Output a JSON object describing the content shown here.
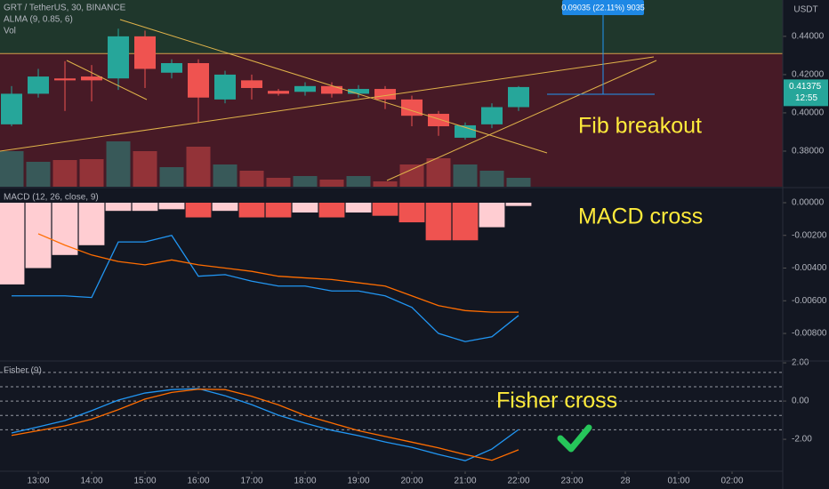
{
  "chart_data": [
    {
      "type": "candlestick",
      "title": "GRT / TetherUS, 30, BINANCE",
      "subtitles": [
        "ALMA (9, 0.85, 6)",
        "Vol"
      ],
      "x": [
        12.5,
        13,
        13.5,
        14,
        14.5,
        15,
        15.5,
        16,
        16.5,
        17,
        17.5,
        18,
        18.5,
        19,
        19.5,
        20,
        20.5,
        21,
        21.5,
        22
      ],
      "open": [
        0.394,
        0.41,
        0.418,
        0.419,
        0.418,
        0.44,
        0.421,
        0.426,
        0.407,
        0.417,
        0.4115,
        0.411,
        0.414,
        0.41,
        0.4125,
        0.407,
        0.3995,
        0.387,
        0.394,
        0.403
      ],
      "high": [
        0.414,
        0.423,
        0.427,
        0.425,
        0.444,
        0.443,
        0.428,
        0.428,
        0.422,
        0.42,
        0.4125,
        0.416,
        0.416,
        0.4145,
        0.414,
        0.409,
        0.401,
        0.395,
        0.405,
        0.414
      ],
      "low": [
        0.393,
        0.408,
        0.401,
        0.406,
        0.412,
        0.413,
        0.418,
        0.395,
        0.405,
        0.407,
        0.409,
        0.409,
        0.408,
        0.408,
        0.402,
        0.393,
        0.388,
        0.386,
        0.392,
        0.401
      ],
      "close": [
        0.41,
        0.419,
        0.417,
        0.417,
        0.44,
        0.423,
        0.426,
        0.408,
        0.42,
        0.413,
        0.41,
        0.414,
        0.41,
        0.4125,
        0.407,
        0.3985,
        0.393,
        0.3935,
        0.403,
        0.4135
      ],
      "volume": [
        40,
        28,
        30,
        31,
        51,
        40,
        22,
        45,
        25,
        18,
        10,
        12,
        8,
        12,
        6,
        25,
        32,
        25,
        18,
        10
      ],
      "volume_lim": [
        0,
        210
      ],
      "up_color": "#26a69a",
      "down_color": "#ef5350",
      "xlim": [
        12.283,
        26.95
      ],
      "ylim": [
        0.3614,
        0.459
      ],
      "yticks": [
        {
          "value": 0.38,
          "label": "0.38000"
        },
        {
          "value": 0.4,
          "label": "0.40000"
        },
        {
          "value": 0.42,
          "label": "0.42000"
        },
        {
          "value": 0.44,
          "label": "0.44000"
        }
      ],
      "fib_level": 0.431,
      "currency": "USDT",
      "last_price": {
        "value": 0.41375,
        "label": "0.41375"
      },
      "countdown": "12:55",
      "measure_label": "0.09035 (22.11%) 9035",
      "annotation": "Fib breakout"
    },
    {
      "type": "macd",
      "title": "MACD (12, 26, close, 9)",
      "xlim": [
        12.283,
        26.95
      ],
      "ylim": [
        -0.00963,
        0.00087
      ],
      "yticks": [
        {
          "value": 0,
          "label": "0.00000"
        },
        {
          "value": -0.002,
          "label": "-0.00200"
        },
        {
          "value": -0.004,
          "label": "-0.00400"
        },
        {
          "value": -0.006,
          "label": "-0.00600"
        },
        {
          "value": -0.008,
          "label": "-0.00800"
        }
      ],
      "x": [
        12.5,
        13,
        13.5,
        14,
        14.5,
        15,
        15.5,
        16,
        16.5,
        17,
        17.5,
        18,
        18.5,
        19,
        19.5,
        20,
        20.5,
        21,
        21.5,
        22
      ],
      "histogram": {
        "values": [
          -0.005,
          -0.004,
          -0.0032,
          -0.0026,
          -0.0005,
          -0.0005,
          -0.0004,
          -0.0009,
          -0.0005,
          -0.0009,
          -0.0009,
          -0.0006,
          -0.0009,
          -0.0006,
          -0.0008,
          -0.0012,
          -0.0023,
          -0.0023,
          -0.0015,
          -0.0002
        ],
        "colors": [
          "#ffcdd2",
          "#ffcdd2",
          "#ffcdd2",
          "#ffcdd2",
          "#ffcdd2",
          "#ffcdd2",
          "#ffcdd2",
          "#ef5350",
          "#ffcdd2",
          "#ef5350",
          "#ef5350",
          "#ffcdd2",
          "#ef5350",
          "#ffcdd2",
          "#ef5350",
          "#ef5350",
          "#ef5350",
          "#ef5350",
          "#ffcdd2",
          "#ffcdd2"
        ]
      },
      "series": [
        {
          "color": "#2196f3",
          "values": [
            -0.0057,
            -0.0057,
            -0.0057,
            -0.0058,
            -0.0024,
            -0.0024,
            -0.002,
            -0.0045,
            -0.0044,
            -0.0048,
            -0.0051,
            -0.0051,
            -0.0054,
            -0.0054,
            -0.0057,
            -0.0064,
            -0.008,
            -0.0085,
            -0.0082,
            -0.0069
          ]
        },
        {
          "color": "#ff6d00",
          "values": [
            null,
            -0.0019,
            -0.0026,
            -0.0032,
            -0.0036,
            -0.0038,
            -0.0035,
            -0.0038,
            -0.004,
            -0.0042,
            -0.0045,
            -0.0046,
            -0.0047,
            -0.0049,
            -0.0051,
            -0.0057,
            -0.0063,
            -0.0066,
            -0.0067,
            -0.0067
          ]
        }
      ],
      "annotation": "MACD cross"
    },
    {
      "type": "fisher",
      "title": "Fisher (9)",
      "xlim": [
        12.283,
        26.95
      ],
      "ylim": [
        -3.67,
        2.05
      ],
      "yticks": [
        {
          "value": 2,
          "label": "2.00"
        },
        {
          "value": 0,
          "label": "0.00"
        },
        {
          "value": -2,
          "label": "-2.00"
        }
      ],
      "levels": [
        1.5,
        0.75,
        0,
        -0.75,
        -1.5
      ],
      "x": [
        12.5,
        13,
        13.5,
        14,
        14.5,
        15,
        15.5,
        16,
        16.5,
        17,
        17.5,
        18,
        18.5,
        19,
        19.5,
        20,
        20.5,
        21,
        21.5,
        22
      ],
      "series": [
        {
          "color": "#2196f3",
          "values": [
            -1.67,
            -1.35,
            -1.02,
            -0.5,
            0.05,
            0.42,
            0.6,
            0.65,
            0.28,
            -0.19,
            -0.74,
            -1.16,
            -1.53,
            -1.81,
            -2.14,
            -2.42,
            -2.79,
            -3.12,
            -2.51,
            -1.49
          ]
        },
        {
          "color": "#ff6d00",
          "values": [
            -1.8,
            -1.55,
            -1.3,
            -0.95,
            -0.45,
            0.1,
            0.45,
            0.62,
            0.6,
            0.25,
            -0.2,
            -0.75,
            -1.15,
            -1.55,
            -1.85,
            -2.15,
            -2.45,
            -2.8,
            -3.1,
            -2.55
          ]
        }
      ],
      "xticks": [
        {
          "value": 13,
          "label": "13:00"
        },
        {
          "value": 14,
          "label": "14:00"
        },
        {
          "value": 15,
          "label": "15:00"
        },
        {
          "value": 16,
          "label": "16:00"
        },
        {
          "value": 17,
          "label": "17:00"
        },
        {
          "value": 18,
          "label": "18:00"
        },
        {
          "value": 19,
          "label": "19:00"
        },
        {
          "value": 20,
          "label": "20:00"
        },
        {
          "value": 21,
          "label": "21:00"
        },
        {
          "value": 22,
          "label": "22:00"
        },
        {
          "value": 23,
          "label": "23:00"
        },
        {
          "value": 24,
          "label": "28"
        },
        {
          "value": 25,
          "label": "01:00"
        },
        {
          "value": 26,
          "label": "02:00"
        }
      ],
      "annotation": "Fisher cross"
    }
  ]
}
